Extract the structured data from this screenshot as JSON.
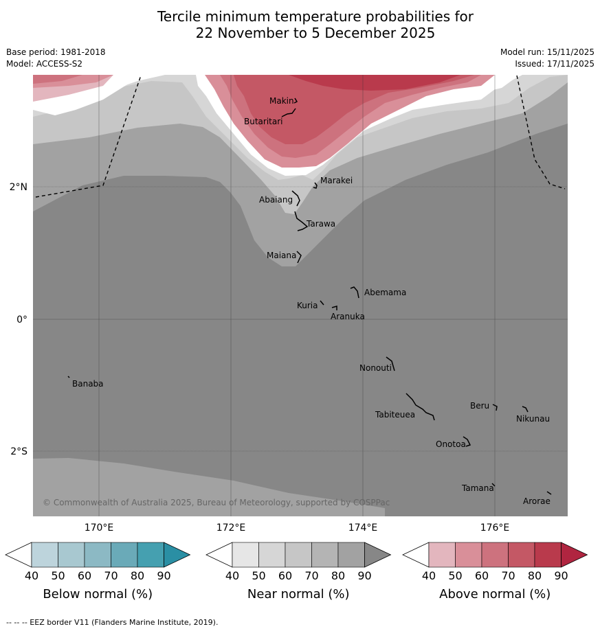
{
  "title": {
    "line1": "Tercile minimum temperature probabilities for",
    "line2": "22 November to 5 December 2025"
  },
  "meta": {
    "base_period": "Base period: 1981-2018",
    "model": "Model: ACCESS-S2",
    "model_run": "Model run: 15/11/2025",
    "issued": "Issued: 17/11/2025"
  },
  "axes": {
    "lat_labels": [
      "2°N",
      "0°",
      "2°S"
    ],
    "lon_labels": [
      "170°E",
      "172°E",
      "174°E",
      "176°E"
    ]
  },
  "places": [
    {
      "name": "Makin"
    },
    {
      "name": "Butaritari"
    },
    {
      "name": "Marakei"
    },
    {
      "name": "Abaiang"
    },
    {
      "name": "Tarawa"
    },
    {
      "name": "Maiana"
    },
    {
      "name": "Abemama"
    },
    {
      "name": "Kuria"
    },
    {
      "name": "Aranuka"
    },
    {
      "name": "Nonouti"
    },
    {
      "name": "Banaba"
    },
    {
      "name": "Beru"
    },
    {
      "name": "Tabiteuea"
    },
    {
      "name": "Nikunau"
    },
    {
      "name": "Onotoa"
    },
    {
      "name": "Tamana"
    },
    {
      "name": "Arorae"
    }
  ],
  "copyright": "© Commonwealth of Australia 2025, Bureau of Meteorology, supported by COSPPac",
  "colorbars": [
    {
      "title": "Below normal (%)",
      "ticks": [
        "40",
        "50",
        "60",
        "70",
        "80",
        "90"
      ],
      "colors": [
        "#bdd4dc",
        "#a8c8d0",
        "#8cb9c4",
        "#6aaab8",
        "#45a0b0",
        "#2a8fa4"
      ]
    },
    {
      "title": "Near normal (%)",
      "ticks": [
        "40",
        "50",
        "60",
        "70",
        "80",
        "90"
      ],
      "colors": [
        "#e6e6e6",
        "#d6d6d6",
        "#c6c6c6",
        "#b4b4b4",
        "#a2a2a2",
        "#878787"
      ]
    },
    {
      "title": "Above normal (%)",
      "ticks": [
        "40",
        "50",
        "60",
        "70",
        "80",
        "90"
      ],
      "colors": [
        "#e3b6be",
        "#d98f99",
        "#cd727e",
        "#c45865",
        "#b93a4c",
        "#b02540"
      ]
    }
  ],
  "footer": "--  --  -- EEZ border V11 (Flanders Marine Institute, 2019)."
}
